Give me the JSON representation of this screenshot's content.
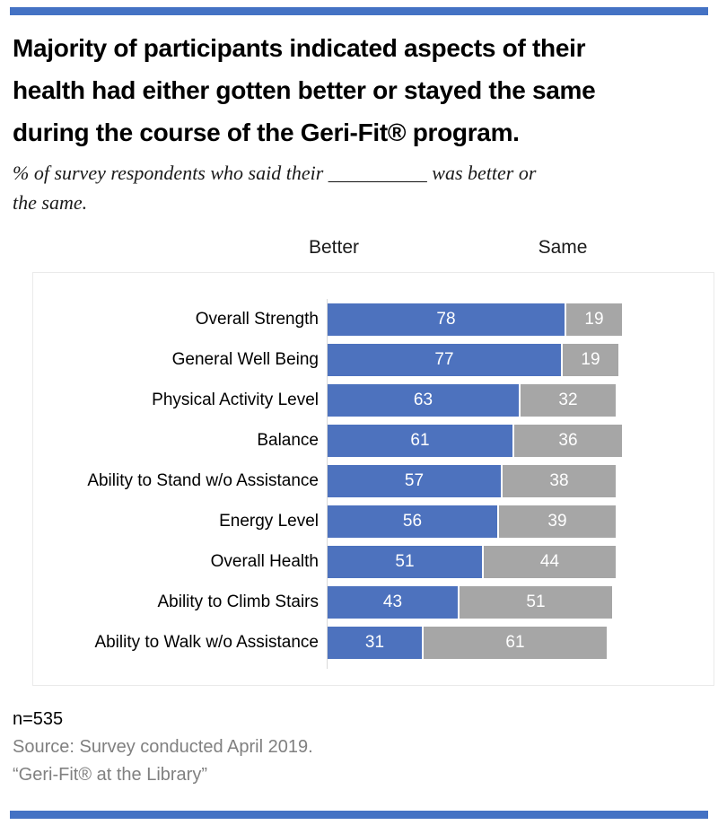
{
  "colors": {
    "rule_blue": "#4472C4",
    "bar_blue": "#4D72BE",
    "bar_gray": "#A6A6A6",
    "axis_gray": "#D9D9D9",
    "panel_border": "#EAEAEA",
    "footer_gray": "#808080",
    "value_label_white": "#FFFFFF"
  },
  "header": {
    "title_lines": [
      "Majority of participants indicated aspects of their",
      "health had either gotten better or stayed the same",
      "during the course of the Geri-Fit® program."
    ],
    "subtitle_lines": [
      "% of survey respondents who said their __________ was better or",
      "the same."
    ]
  },
  "chart": {
    "column_header_better": "Better",
    "column_header_same": "Same"
  },
  "chart_data": {
    "type": "bar",
    "orientation": "horizontal",
    "stacked": true,
    "title": "Majority of participants indicated aspects of their health had either gotten better or stayed the same during the course of the Geri-Fit® program.",
    "subtitle": "% of survey respondents who said their __________ was better or the same.",
    "categories": [
      "Overall Strength",
      "General Well Being",
      "Physical Activity Level",
      "Balance",
      "Ability to Stand w/o Assistance",
      "Energy Level",
      "Overall Health",
      "Ability to Climb Stairs",
      "Ability to Walk w/o Assistance"
    ],
    "series": [
      {
        "name": "Better",
        "color": "#4D72BE",
        "values": [
          78,
          77,
          63,
          61,
          57,
          56,
          51,
          43,
          31
        ]
      },
      {
        "name": "Same",
        "color": "#A6A6A6",
        "values": [
          19,
          19,
          32,
          36,
          38,
          39,
          44,
          51,
          61
        ]
      }
    ],
    "xlim": [
      0,
      100
    ],
    "value_labels": "inside segments, white",
    "legend_position": "top column headers",
    "grid": false
  },
  "footer": {
    "n_label": "n=535",
    "source": "Source: Survey conducted April 2019.",
    "attribution": "“Geri-Fit® at the Library”"
  }
}
